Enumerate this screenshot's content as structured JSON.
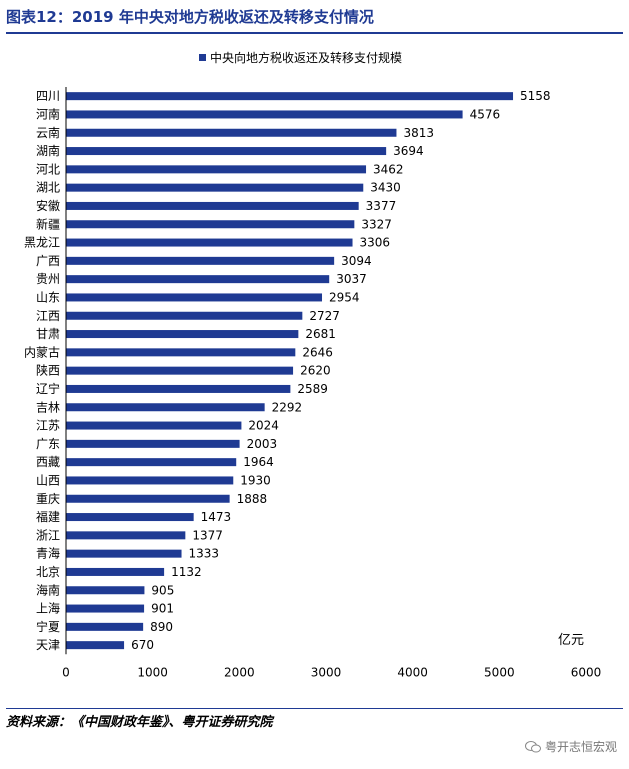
{
  "title": "图表12：2019 年中央对地方税收返还及转移支付情况",
  "source": "资料来源：《中国财政年鉴》、粤开证券研究院",
  "watermark": "粤开志恒宏观",
  "chart_data": {
    "type": "bar",
    "orientation": "horizontal",
    "title": "图表12：2019 年中央对地方税收返还及转移支付情况",
    "series_name": "中央向地方税收返还及转移支付规模",
    "unit": "亿元",
    "categories": [
      "四川",
      "河南",
      "云南",
      "湖南",
      "河北",
      "湖北",
      "安徽",
      "新疆",
      "黑龙江",
      "广西",
      "贵州",
      "山东",
      "江西",
      "甘肃",
      "内蒙古",
      "陕西",
      "辽宁",
      "吉林",
      "江苏",
      "广东",
      "西藏",
      "山西",
      "重庆",
      "福建",
      "浙江",
      "青海",
      "北京",
      "海南",
      "上海",
      "宁夏",
      "天津"
    ],
    "values": [
      5158,
      4576,
      3813,
      3694,
      3462,
      3430,
      3377,
      3327,
      3306,
      3094,
      3037,
      2954,
      2727,
      2681,
      2646,
      2620,
      2589,
      2292,
      2024,
      2003,
      1964,
      1930,
      1888,
      1473,
      1377,
      1333,
      1132,
      905,
      901,
      890,
      670
    ],
    "xlim": [
      0,
      6000
    ],
    "xticks": [
      0,
      1000,
      2000,
      3000,
      4000,
      5000,
      6000
    ],
    "bar_color": "#1f3a93",
    "legend_position": "top-center",
    "grid": false
  }
}
